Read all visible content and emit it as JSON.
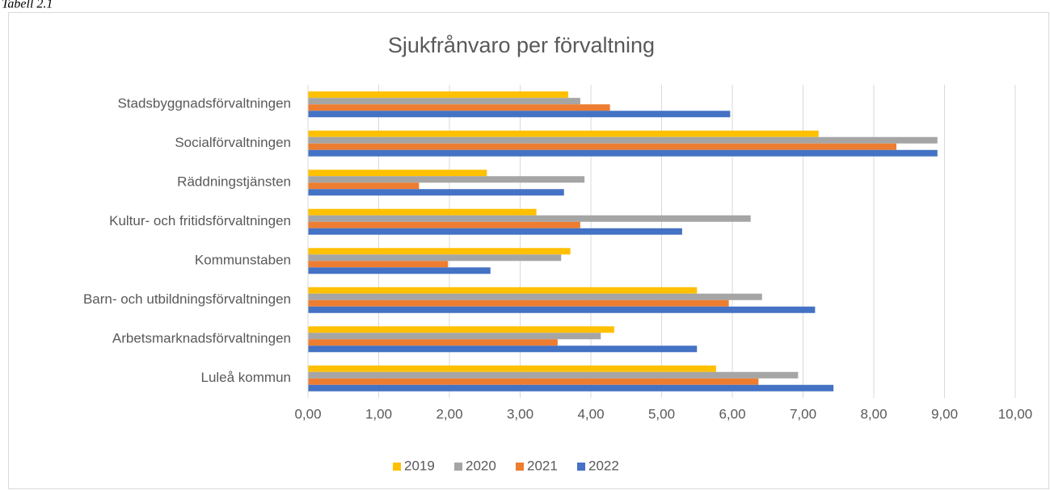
{
  "caption": "Tabell 2.1",
  "chart_data": {
    "type": "hbar",
    "title": "Sjukfrånvaro per förvaltning",
    "categories": [
      "Stadsbyggnadsförvaltningen",
      "Socialförvaltningen",
      "Räddningstjänsten",
      "Kultur- och fritidsförvaltningen",
      "Kommunstaben",
      "Barn- och utbildningsförvaltningen",
      "Arbetsmarknadsförvaltningen",
      "Luleå kommun"
    ],
    "series": [
      {
        "name": "2019",
        "color": "#ffc000",
        "values": [
          3.68,
          7.22,
          2.53,
          3.23,
          3.71,
          5.5,
          4.33,
          5.77
        ]
      },
      {
        "name": "2020",
        "color": "#a5a5a5",
        "values": [
          3.85,
          8.9,
          3.91,
          6.26,
          3.58,
          6.42,
          4.14,
          6.93
        ]
      },
      {
        "name": "2021",
        "color": "#ed7d31",
        "values": [
          4.27,
          8.32,
          1.57,
          3.85,
          1.98,
          5.95,
          3.53,
          6.37
        ]
      },
      {
        "name": "2022",
        "color": "#4472c4",
        "values": [
          5.97,
          8.9,
          3.62,
          5.29,
          2.58,
          7.17,
          5.5,
          7.43
        ]
      }
    ],
    "xlim": [
      0,
      10
    ],
    "xticks": [
      {
        "value": 0,
        "label": "0,00"
      },
      {
        "value": 1,
        "label": "1,00"
      },
      {
        "value": 2,
        "label": "2,00"
      },
      {
        "value": 3,
        "label": "3,00"
      },
      {
        "value": 4,
        "label": "4,00"
      },
      {
        "value": 5,
        "label": "5,00"
      },
      {
        "value": 6,
        "label": "6,00"
      },
      {
        "value": 7,
        "label": "7,00"
      },
      {
        "value": 8,
        "label": "8,00"
      },
      {
        "value": 9,
        "label": "9,00"
      },
      {
        "value": 10,
        "label": "10,00"
      }
    ],
    "grid": true,
    "legend": "bottom"
  }
}
